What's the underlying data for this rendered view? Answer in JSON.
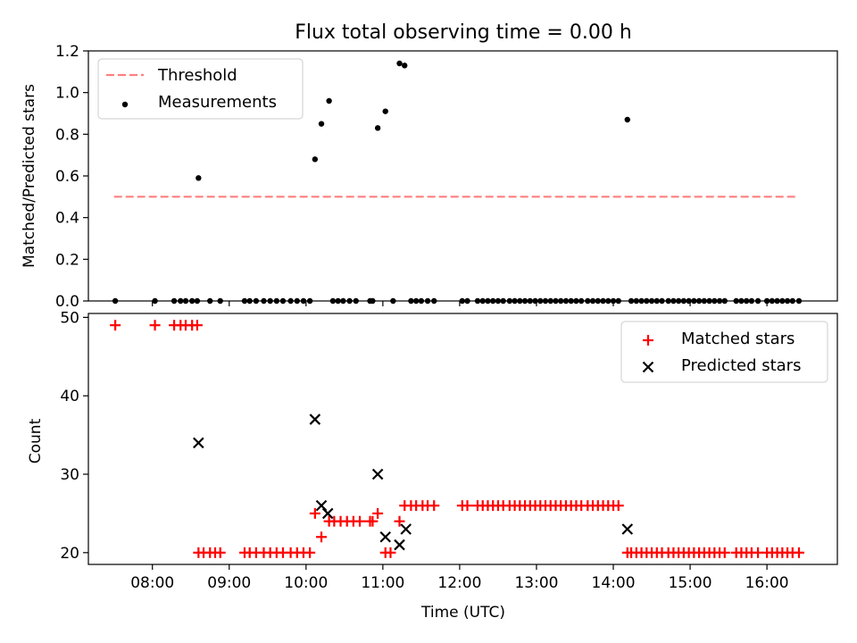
{
  "chart_data": [
    {
      "type": "scatter",
      "title": "Flux total observing time = 0.00 h",
      "xlabel": "",
      "ylabel": "Matched/Predicted stars",
      "ylim": [
        0.0,
        1.2
      ],
      "yticks": [
        "0.0",
        "0.2",
        "0.4",
        "0.6",
        "0.8",
        "1.0",
        "1.2"
      ],
      "legend": {
        "placement": "top-left",
        "entries": [
          "Threshold",
          "Measurements"
        ]
      },
      "threshold": {
        "name": "Threshold",
        "y": 0.5,
        "x_start": "07:30",
        "x_end": "16:22",
        "color": "#ff7f7f",
        "style": "dashed"
      },
      "series": [
        {
          "name": "Measurements",
          "color": "#000000",
          "marker": "dot",
          "points": [
            [
              "07:31",
              0
            ],
            [
              "08:02",
              0
            ],
            [
              "08:17",
              0
            ],
            [
              "08:22",
              0
            ],
            [
              "08:26",
              0
            ],
            [
              "08:31",
              0
            ],
            [
              "08:35",
              0
            ],
            [
              "08:36",
              0.59
            ],
            [
              "08:45",
              0
            ],
            [
              "08:53",
              0
            ],
            [
              "09:12",
              0
            ],
            [
              "09:16",
              0
            ],
            [
              "09:21",
              0
            ],
            [
              "09:27",
              0
            ],
            [
              "09:32",
              0
            ],
            [
              "09:37",
              0
            ],
            [
              "09:42",
              0
            ],
            [
              "09:48",
              0
            ],
            [
              "09:53",
              0
            ],
            [
              "09:58",
              0
            ],
            [
              "10:03",
              0
            ],
            [
              "10:07",
              0.68
            ],
            [
              "10:12",
              0.85
            ],
            [
              "10:18",
              0.96
            ],
            [
              "10:21",
              0
            ],
            [
              "10:25",
              0
            ],
            [
              "10:29",
              0
            ],
            [
              "10:34",
              0
            ],
            [
              "10:39",
              0
            ],
            [
              "10:50",
              0
            ],
            [
              "10:52",
              0
            ],
            [
              "10:56",
              0.83
            ],
            [
              "11:02",
              0.91
            ],
            [
              "11:08",
              0
            ],
            [
              "11:13",
              1.14
            ],
            [
              "11:17",
              1.13
            ],
            [
              "11:22",
              0
            ],
            [
              "11:26",
              0
            ],
            [
              "11:30",
              0
            ],
            [
              "11:35",
              0
            ],
            [
              "11:40",
              0
            ],
            [
              "12:02",
              0
            ],
            [
              "12:06",
              0
            ],
            [
              "12:14",
              0
            ],
            [
              "12:18",
              0
            ],
            [
              "12:22",
              0
            ],
            [
              "12:26",
              0
            ],
            [
              "12:30",
              0
            ],
            [
              "12:34",
              0
            ],
            [
              "12:39",
              0
            ],
            [
              "12:43",
              0
            ],
            [
              "12:47",
              0
            ],
            [
              "12:51",
              0
            ],
            [
              "12:55",
              0
            ],
            [
              "12:59",
              0
            ],
            [
              "13:03",
              0
            ],
            [
              "13:07",
              0
            ],
            [
              "13:11",
              0
            ],
            [
              "13:15",
              0
            ],
            [
              "13:19",
              0
            ],
            [
              "13:23",
              0
            ],
            [
              "13:27",
              0
            ],
            [
              "13:31",
              0
            ],
            [
              "13:35",
              0
            ],
            [
              "13:40",
              0
            ],
            [
              "13:44",
              0
            ],
            [
              "13:48",
              0
            ],
            [
              "13:52",
              0
            ],
            [
              "13:56",
              0
            ],
            [
              "14:00",
              0
            ],
            [
              "14:04",
              0
            ],
            [
              "14:11",
              0.87
            ],
            [
              "14:14",
              0
            ],
            [
              "14:18",
              0
            ],
            [
              "14:22",
              0
            ],
            [
              "14:26",
              0
            ],
            [
              "14:30",
              0
            ],
            [
              "14:34",
              0
            ],
            [
              "14:38",
              0
            ],
            [
              "14:43",
              0
            ],
            [
              "14:47",
              0
            ],
            [
              "14:51",
              0
            ],
            [
              "14:55",
              0
            ],
            [
              "14:59",
              0
            ],
            [
              "15:03",
              0
            ],
            [
              "15:07",
              0
            ],
            [
              "15:11",
              0
            ],
            [
              "15:15",
              0
            ],
            [
              "15:19",
              0
            ],
            [
              "15:23",
              0
            ],
            [
              "15:27",
              0
            ],
            [
              "15:36",
              0
            ],
            [
              "15:40",
              0
            ],
            [
              "15:44",
              0
            ],
            [
              "15:48",
              0
            ],
            [
              "15:53",
              0
            ],
            [
              "16:00",
              0
            ],
            [
              "16:04",
              0
            ],
            [
              "16:08",
              0
            ],
            [
              "16:12",
              0
            ],
            [
              "16:16",
              0
            ],
            [
              "16:20",
              0
            ],
            [
              "16:25",
              0
            ]
          ]
        }
      ]
    },
    {
      "type": "scatter",
      "title": "",
      "xlabel": "Time (UTC)",
      "ylabel": "Count",
      "ylim": [
        18.5,
        50.5
      ],
      "yticks": [
        "20",
        "30",
        "40",
        "50"
      ],
      "xlim": [
        "07:10",
        "16:55"
      ],
      "xticks": [
        "08:00",
        "09:00",
        "10:00",
        "11:00",
        "12:00",
        "13:00",
        "14:00",
        "15:00",
        "16:00"
      ],
      "legend": {
        "placement": "top-right",
        "entries": [
          "Matched stars",
          "Predicted stars"
        ]
      },
      "series": [
        {
          "name": "Matched stars",
          "color": "#ff0000",
          "marker": "plus",
          "points": [
            [
              "07:31",
              49
            ],
            [
              "08:02",
              49
            ],
            [
              "08:17",
              49
            ],
            [
              "08:22",
              49
            ],
            [
              "08:26",
              49
            ],
            [
              "08:31",
              49
            ],
            [
              "08:35",
              49
            ],
            [
              "08:36",
              20
            ],
            [
              "08:40",
              20
            ],
            [
              "08:45",
              20
            ],
            [
              "08:49",
              20
            ],
            [
              "08:53",
              20
            ],
            [
              "09:12",
              20
            ],
            [
              "09:16",
              20
            ],
            [
              "09:21",
              20
            ],
            [
              "09:27",
              20
            ],
            [
              "09:32",
              20
            ],
            [
              "09:37",
              20
            ],
            [
              "09:42",
              20
            ],
            [
              "09:48",
              20
            ],
            [
              "09:53",
              20
            ],
            [
              "09:58",
              20
            ],
            [
              "10:03",
              20
            ],
            [
              "10:07",
              25
            ],
            [
              "10:12",
              22
            ],
            [
              "10:18",
              24
            ],
            [
              "10:22",
              24
            ],
            [
              "10:27",
              24
            ],
            [
              "10:32",
              24
            ],
            [
              "10:37",
              24
            ],
            [
              "10:42",
              24
            ],
            [
              "10:50",
              24
            ],
            [
              "10:52",
              24
            ],
            [
              "10:56",
              25
            ],
            [
              "11:02",
              20
            ],
            [
              "11:06",
              20
            ],
            [
              "11:13",
              24
            ],
            [
              "11:17",
              26
            ],
            [
              "11:22",
              26
            ],
            [
              "11:26",
              26
            ],
            [
              "11:31",
              26
            ],
            [
              "11:35",
              26
            ],
            [
              "11:40",
              26
            ],
            [
              "12:02",
              26
            ],
            [
              "12:06",
              26
            ],
            [
              "12:14",
              26
            ],
            [
              "12:18",
              26
            ],
            [
              "12:22",
              26
            ],
            [
              "12:26",
              26
            ],
            [
              "12:30",
              26
            ],
            [
              "12:34",
              26
            ],
            [
              "12:39",
              26
            ],
            [
              "12:43",
              26
            ],
            [
              "12:47",
              26
            ],
            [
              "12:51",
              26
            ],
            [
              "12:55",
              26
            ],
            [
              "12:59",
              26
            ],
            [
              "13:03",
              26
            ],
            [
              "13:07",
              26
            ],
            [
              "13:11",
              26
            ],
            [
              "13:15",
              26
            ],
            [
              "13:19",
              26
            ],
            [
              "13:23",
              26
            ],
            [
              "13:27",
              26
            ],
            [
              "13:31",
              26
            ],
            [
              "13:35",
              26
            ],
            [
              "13:40",
              26
            ],
            [
              "13:44",
              26
            ],
            [
              "13:48",
              26
            ],
            [
              "13:52",
              26
            ],
            [
              "13:56",
              26
            ],
            [
              "14:00",
              26
            ],
            [
              "14:04",
              26
            ],
            [
              "14:11",
              20
            ],
            [
              "14:14",
              20
            ],
            [
              "14:18",
              20
            ],
            [
              "14:22",
              20
            ],
            [
              "14:26",
              20
            ],
            [
              "14:30",
              20
            ],
            [
              "14:34",
              20
            ],
            [
              "14:38",
              20
            ],
            [
              "14:43",
              20
            ],
            [
              "14:47",
              20
            ],
            [
              "14:51",
              20
            ],
            [
              "14:55",
              20
            ],
            [
              "14:59",
              20
            ],
            [
              "15:03",
              20
            ],
            [
              "15:07",
              20
            ],
            [
              "15:11",
              20
            ],
            [
              "15:15",
              20
            ],
            [
              "15:19",
              20
            ],
            [
              "15:23",
              20
            ],
            [
              "15:27",
              20
            ],
            [
              "15:36",
              20
            ],
            [
              "15:40",
              20
            ],
            [
              "15:44",
              20
            ],
            [
              "15:48",
              20
            ],
            [
              "15:53",
              20
            ],
            [
              "16:00",
              20
            ],
            [
              "16:04",
              20
            ],
            [
              "16:08",
              20
            ],
            [
              "16:12",
              20
            ],
            [
              "16:16",
              20
            ],
            [
              "16:20",
              20
            ],
            [
              "16:25",
              20
            ]
          ]
        },
        {
          "name": "Predicted stars",
          "color": "#000000",
          "marker": "x",
          "points": [
            [
              "08:36",
              34
            ],
            [
              "10:07",
              37
            ],
            [
              "10:12",
              26
            ],
            [
              "10:17",
              25
            ],
            [
              "10:56",
              30
            ],
            [
              "11:02",
              22
            ],
            [
              "11:13",
              21
            ],
            [
              "11:18",
              23
            ],
            [
              "14:11",
              23
            ]
          ]
        }
      ]
    }
  ]
}
